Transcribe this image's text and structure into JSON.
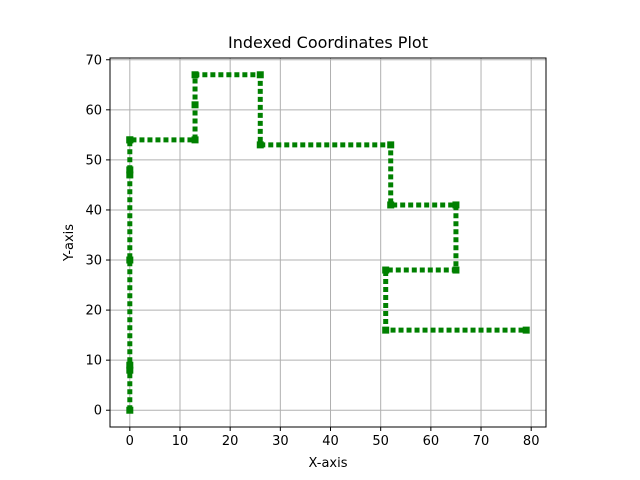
{
  "chart_data": {
    "type": "line",
    "title": "Indexed Coordinates Plot",
    "xlabel": "X-axis",
    "ylabel": "Y-axis",
    "xlim": [
      -3.95,
      82.95
    ],
    "ylim": [
      -3.35,
      70.35
    ],
    "xticks": [
      0,
      10,
      20,
      30,
      40,
      50,
      60,
      70,
      80
    ],
    "yticks": [
      0,
      10,
      20,
      30,
      40,
      50,
      60,
      70
    ],
    "grid": true,
    "series": [
      {
        "color": "#008000",
        "linestyle": "dotted",
        "marker": "square",
        "x": [
          0,
          0,
          0,
          0,
          0,
          0,
          0,
          0,
          13,
          13,
          13,
          26,
          26,
          52,
          52,
          65,
          65,
          51,
          51,
          79
        ],
        "y": [
          0,
          8,
          9,
          30,
          47,
          48,
          54,
          54,
          54,
          61,
          67,
          67,
          53,
          53,
          41,
          41,
          28,
          28,
          16,
          16
        ]
      }
    ]
  }
}
